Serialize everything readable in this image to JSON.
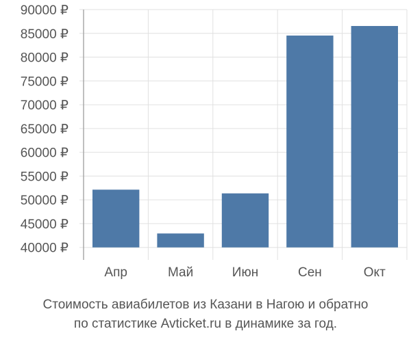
{
  "chart_data": {
    "type": "bar",
    "categories": [
      "Апр",
      "Май",
      "Июн",
      "Сен",
      "Окт"
    ],
    "values": [
      52140,
      42930,
      51360,
      84540,
      86550
    ],
    "ylim": [
      40000,
      90000
    ],
    "yticks": [
      40000,
      45000,
      50000,
      55000,
      60000,
      65000,
      70000,
      75000,
      80000,
      85000,
      90000
    ],
    "ytick_labels": [
      "40000 ₽",
      "45000 ₽",
      "50000 ₽",
      "55000 ₽",
      "60000 ₽",
      "65000 ₽",
      "70000 ₽",
      "75000 ₽",
      "80000 ₽",
      "85000 ₽",
      "90000 ₽"
    ],
    "grid": true,
    "bar_color": "#4e79a7",
    "title_lines": [
      "Стоимость авиабилетов из Казани в Нагою и обратно",
      "по статистике Avticket.ru в динамике за год."
    ]
  }
}
